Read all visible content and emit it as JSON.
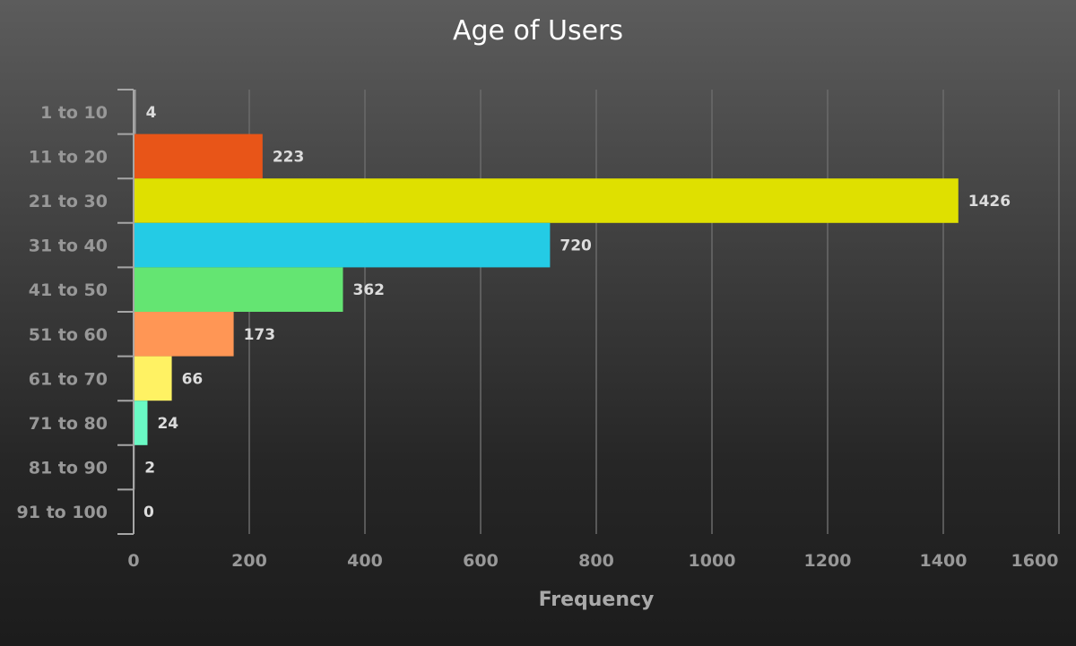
{
  "chart_data": {
    "type": "bar",
    "orientation": "horizontal",
    "title": "Age of Users",
    "xlabel": "Frequency",
    "ylabel": "",
    "categories": [
      "1 to 10",
      "11 to 20",
      "21 to 30",
      "31 to 40",
      "41 to 50",
      "51 to 60",
      "61 to 70",
      "71 to 80",
      "81 to 90",
      "91 to 100"
    ],
    "values": [
      4,
      223,
      1426,
      720,
      362,
      173,
      66,
      24,
      2,
      0
    ],
    "value_labels": [
      "4",
      "223",
      "1426",
      "720",
      "362",
      "173",
      "66",
      "24",
      "2",
      "0"
    ],
    "bar_colors": [
      "#9a9a9a",
      "#e85518",
      "#dfe000",
      "#24cbe5",
      "#64e572",
      "#ff9655",
      "#fff263",
      "#6af9c4",
      "#9a9a9a",
      "#9a9a9a"
    ],
    "xlim": [
      0,
      1600
    ],
    "x_ticks": [
      0,
      200,
      400,
      600,
      800,
      1000,
      1200,
      1400,
      1600
    ],
    "x_tick_labels": [
      "0",
      "200",
      "400",
      "600",
      "800",
      "1000",
      "1200",
      "1400",
      "1600"
    ],
    "grid": true,
    "legend": "none"
  }
}
